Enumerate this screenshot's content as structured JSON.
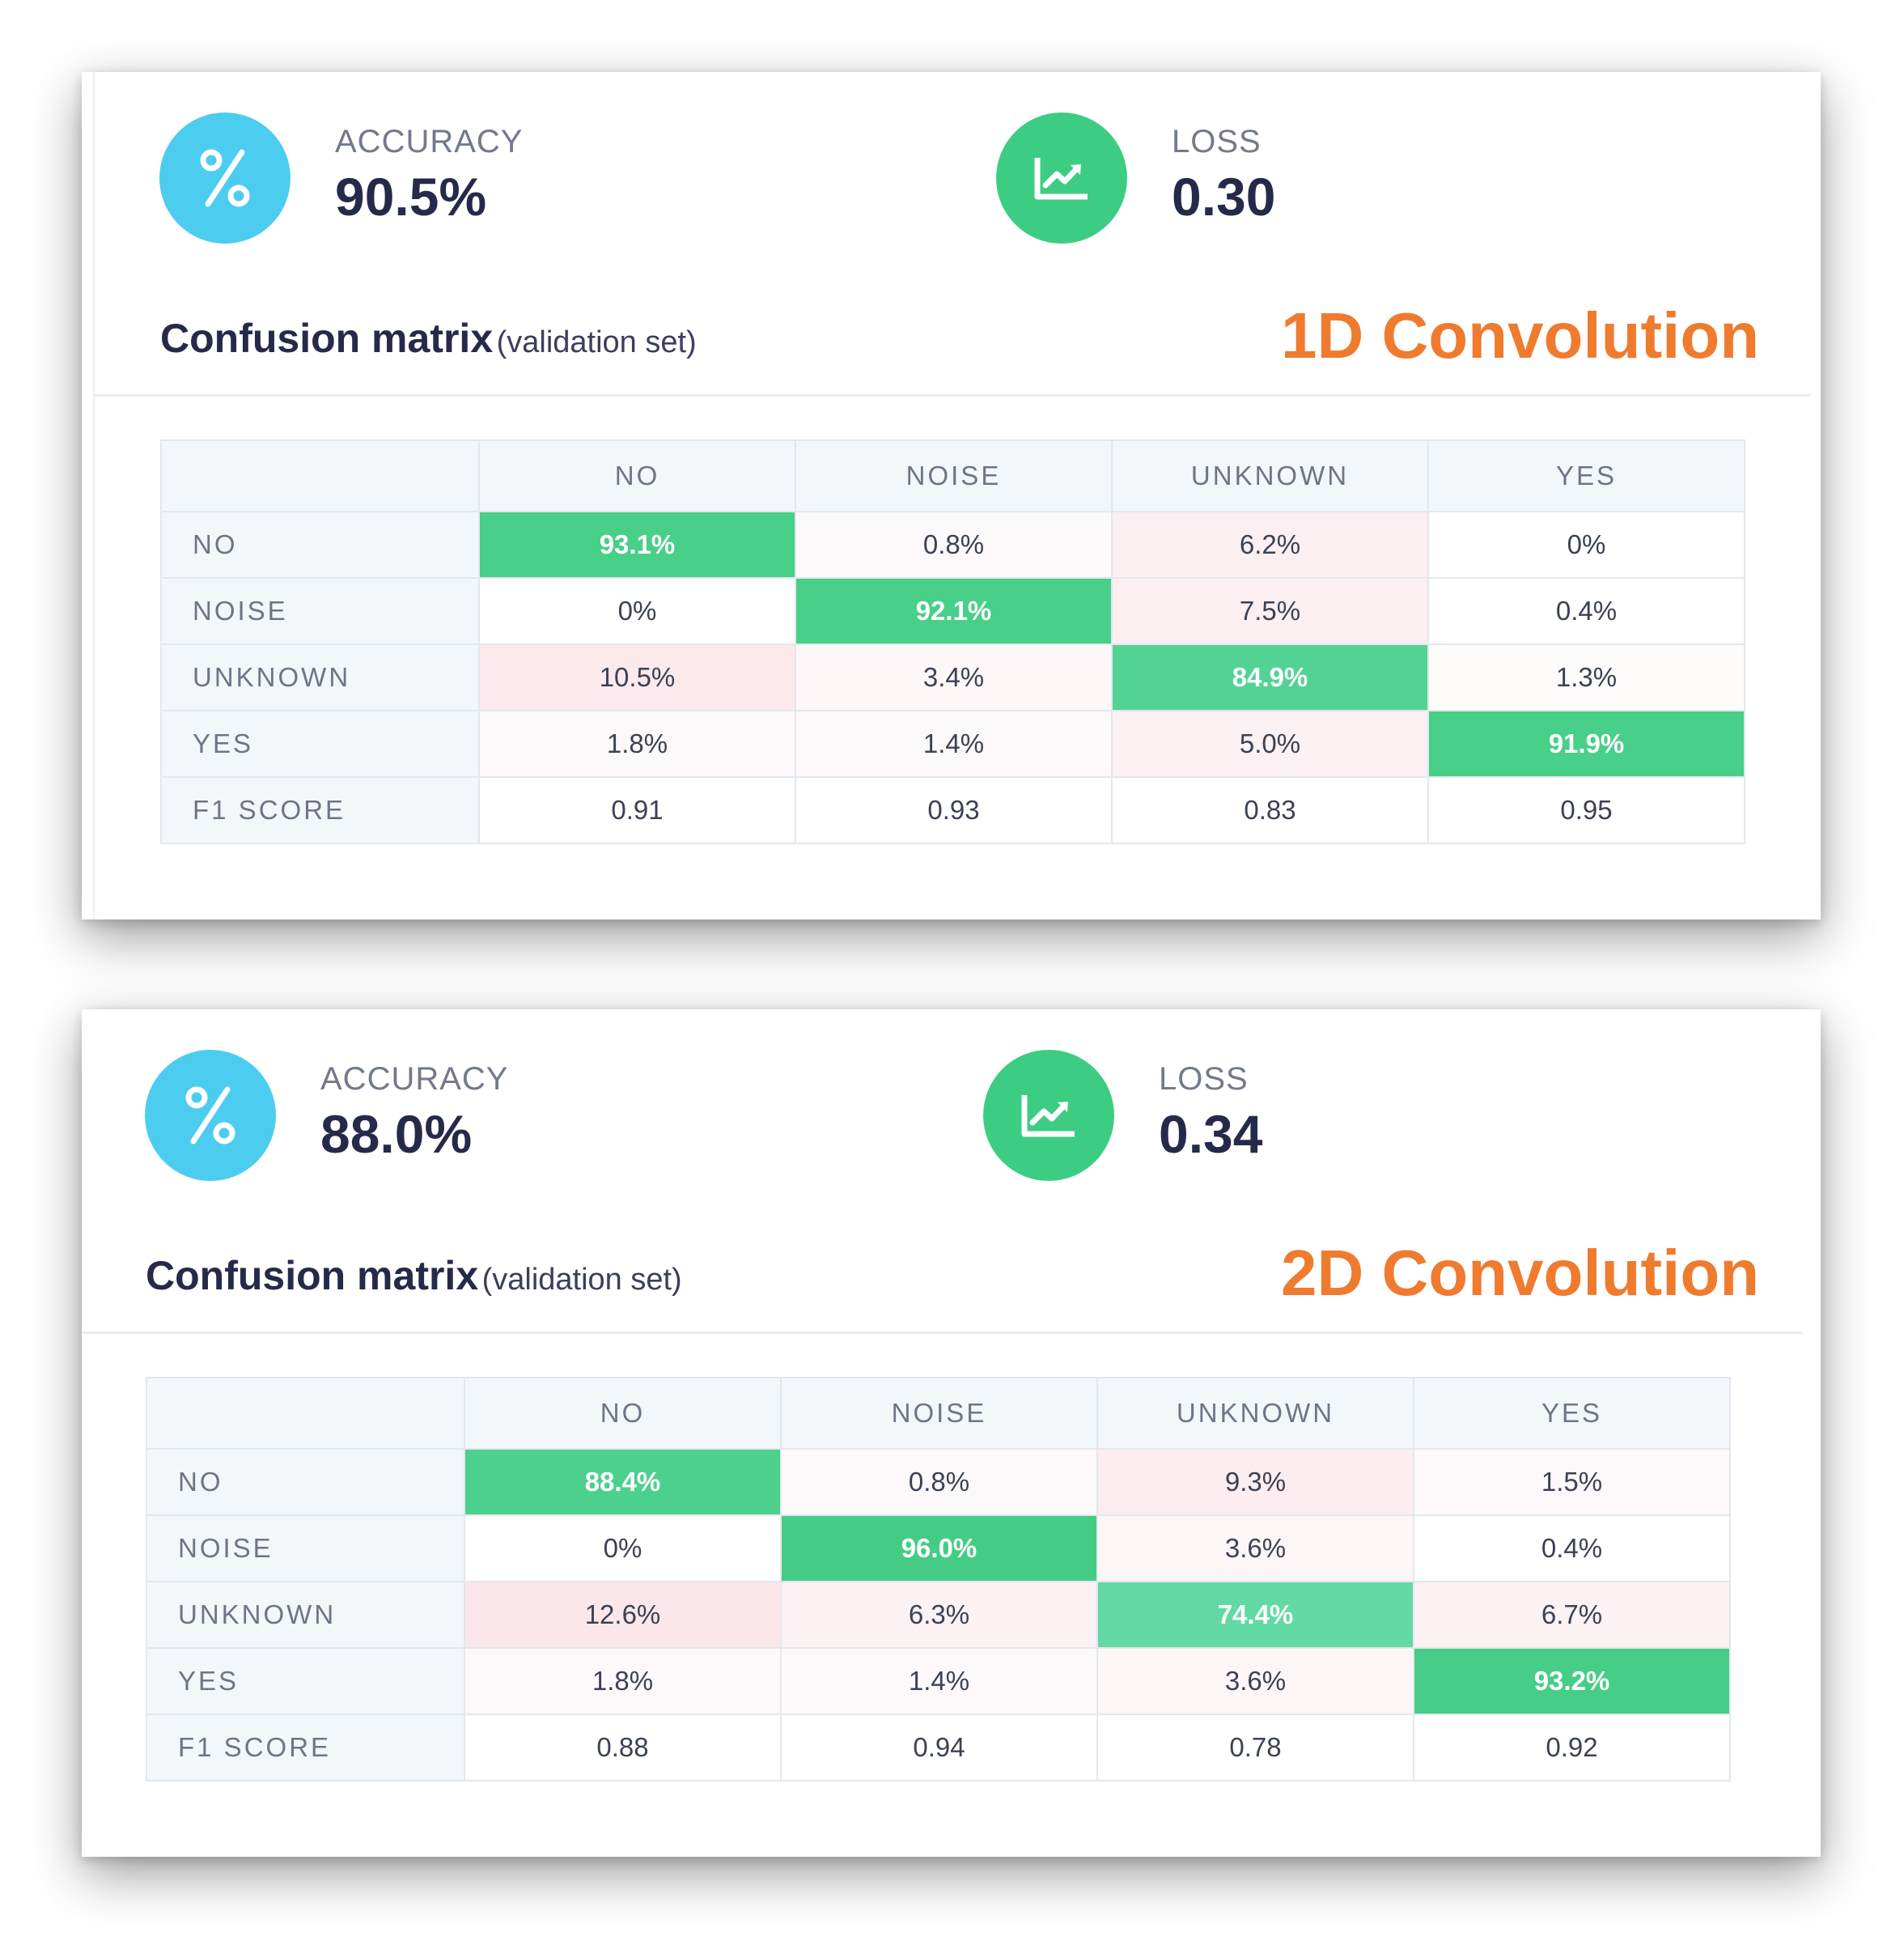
{
  "colors": {
    "accuracy_icon_bg": "#4ccdef",
    "loss_icon_bg": "#3dcd82",
    "model_label": "#ef7b2f",
    "diag_cell": "#48cf88",
    "diag_cell_light": "#63d9a5",
    "misclass_pink": "#fcecee",
    "misclass_faint": "#fdf8f9"
  },
  "panels": [
    {
      "model_name": "1D Convolution",
      "accuracy": {
        "icon": "percent-icon",
        "label": "ACCURACY",
        "value": "90.5%"
      },
      "loss": {
        "icon": "chart-icon",
        "label": "LOSS",
        "value": "0.30"
      },
      "confusion_title": "Confusion matrix",
      "confusion_subtitle": "(validation set)",
      "columns": [
        "NO",
        "NOISE",
        "UNKNOWN",
        "YES"
      ],
      "rows": [
        {
          "label": "NO",
          "cells": [
            "93.1%",
            "0.8%",
            "6.2%",
            "0%"
          ]
        },
        {
          "label": "NOISE",
          "cells": [
            "0%",
            "92.1%",
            "7.5%",
            "0.4%"
          ]
        },
        {
          "label": "UNKNOWN",
          "cells": [
            "10.5%",
            "3.4%",
            "84.9%",
            "1.3%"
          ]
        },
        {
          "label": "YES",
          "cells": [
            "1.8%",
            "1.4%",
            "5.0%",
            "91.9%"
          ]
        },
        {
          "label": "F1 SCORE",
          "cells": [
            "0.91",
            "0.93",
            "0.83",
            "0.95"
          ]
        }
      ]
    },
    {
      "model_name": "2D Convolution",
      "accuracy": {
        "icon": "percent-icon",
        "label": "ACCURACY",
        "value": "88.0%"
      },
      "loss": {
        "icon": "chart-icon",
        "label": "LOSS",
        "value": "0.34"
      },
      "confusion_title": "Confusion matrix",
      "confusion_subtitle": "(validation set)",
      "columns": [
        "NO",
        "NOISE",
        "UNKNOWN",
        "YES"
      ],
      "rows": [
        {
          "label": "NO",
          "cells": [
            "88.4%",
            "0.8%",
            "9.3%",
            "1.5%"
          ]
        },
        {
          "label": "NOISE",
          "cells": [
            "0%",
            "96.0%",
            "3.6%",
            "0.4%"
          ]
        },
        {
          "label": "UNKNOWN",
          "cells": [
            "12.6%",
            "6.3%",
            "74.4%",
            "6.7%"
          ]
        },
        {
          "label": "YES",
          "cells": [
            "1.8%",
            "1.4%",
            "3.6%",
            "93.2%"
          ]
        },
        {
          "label": "F1 SCORE",
          "cells": [
            "0.88",
            "0.94",
            "0.78",
            "0.92"
          ]
        }
      ]
    }
  ]
}
